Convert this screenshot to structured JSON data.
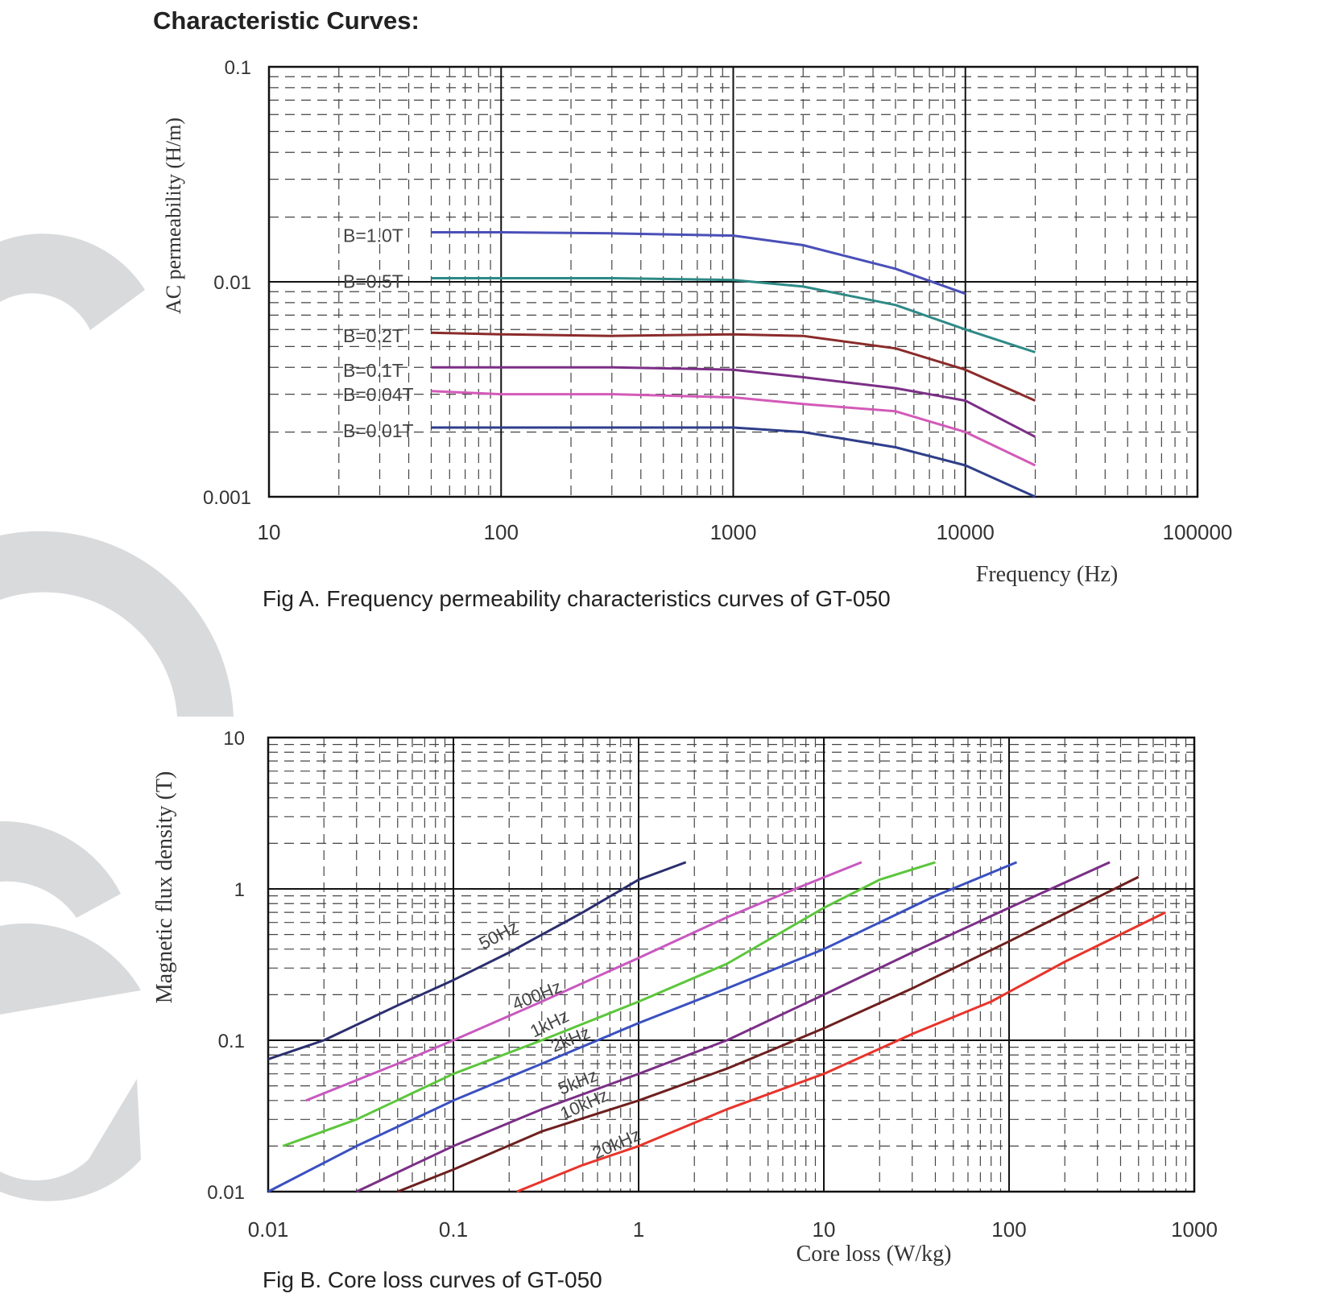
{
  "page": {
    "heading": "Characteristic Curves:",
    "decor_color": "#d9dadc"
  },
  "chart_data": [
    {
      "type": "line",
      "caption": "Fig A. Frequency permeability characteristics curves of GT-050",
      "xlabel": "Frequency (Hz)",
      "ylabel": "AC permeability (H/m)",
      "xscale": "log",
      "yscale": "log",
      "xlim": [
        10,
        100000
      ],
      "ylim": [
        0.001,
        0.1
      ],
      "xticks": [
        "10",
        "100",
        "1000",
        "10000",
        "100000"
      ],
      "yticks": [
        "0.001",
        "0.01",
        "0.1"
      ],
      "grid": true,
      "series": [
        {
          "name": "B=1.0T",
          "color": "#4a4fb8",
          "x": [
            50,
            100,
            300,
            1000,
            2000,
            5000,
            10000
          ],
          "y": [
            0.017,
            0.017,
            0.0168,
            0.0164,
            0.0148,
            0.0115,
            0.0088
          ]
        },
        {
          "name": "B=0.5T",
          "color": "#2e8a86",
          "x": [
            50,
            100,
            300,
            1000,
            2000,
            5000,
            10000,
            20000
          ],
          "y": [
            0.0104,
            0.0104,
            0.0104,
            0.0102,
            0.0095,
            0.0078,
            0.006,
            0.0047
          ]
        },
        {
          "name": "B=0.2T",
          "color": "#8b2b2b",
          "x": [
            50,
            100,
            300,
            1000,
            2000,
            5000,
            10000,
            20000
          ],
          "y": [
            0.0058,
            0.0057,
            0.0056,
            0.0057,
            0.0056,
            0.0049,
            0.0039,
            0.0028
          ]
        },
        {
          "name": "B=0.1T",
          "color": "#7b2f86",
          "x": [
            50,
            100,
            300,
            1000,
            2000,
            5000,
            10000,
            20000
          ],
          "y": [
            0.004,
            0.004,
            0.004,
            0.0039,
            0.0036,
            0.0032,
            0.0028,
            0.0019
          ]
        },
        {
          "name": "B=0.04T",
          "color": "#d35ab8",
          "x": [
            50,
            100,
            300,
            1000,
            2000,
            5000,
            10000,
            20000
          ],
          "y": [
            0.0031,
            0.003,
            0.003,
            0.0029,
            0.0027,
            0.0025,
            0.002,
            0.0014
          ]
        },
        {
          "name": "B=0.01T",
          "color": "#2f3e8a",
          "x": [
            50,
            100,
            300,
            1000,
            2000,
            5000,
            10000,
            20000
          ],
          "y": [
            0.0021,
            0.0021,
            0.0021,
            0.0021,
            0.002,
            0.0017,
            0.0014,
            0.001
          ]
        }
      ]
    },
    {
      "type": "line",
      "caption": "Fig B. Core loss curves of GT-050",
      "xlabel": "Core loss (W/kg)",
      "ylabel": "Magnetic flux density (T)",
      "xscale": "log",
      "yscale": "log",
      "xlim": [
        0.01,
        1000
      ],
      "ylim": [
        0.01,
        10
      ],
      "xticks": [
        "0.01",
        "0.1",
        "1",
        "10",
        "100",
        "1000"
      ],
      "yticks": [
        "0.01",
        "0.1",
        "1",
        "10"
      ],
      "grid": true,
      "series": [
        {
          "name": "50Hz",
          "color": "#2b2f6e",
          "x": [
            0.01,
            0.02,
            0.05,
            0.1,
            0.2,
            0.5,
            1,
            1.8
          ],
          "y": [
            0.075,
            0.1,
            0.17,
            0.25,
            0.38,
            0.7,
            1.15,
            1.5
          ]
        },
        {
          "name": "400Hz",
          "color": "#c859bf",
          "x": [
            0.016,
            0.05,
            0.1,
            0.3,
            1,
            3,
            7,
            16
          ],
          "y": [
            0.04,
            0.07,
            0.1,
            0.18,
            0.35,
            0.65,
            1,
            1.5
          ]
        },
        {
          "name": "1kHz",
          "color": "#5cc63c",
          "x": [
            0.012,
            0.03,
            0.1,
            0.3,
            1,
            3,
            10,
            20,
            40
          ],
          "y": [
            0.02,
            0.03,
            0.06,
            0.1,
            0.18,
            0.32,
            0.75,
            1.15,
            1.5
          ]
        },
        {
          "name": "2kHz",
          "color": "#3a50c0",
          "x": [
            0.01,
            0.03,
            0.1,
            0.3,
            1,
            3,
            10,
            40,
            110
          ],
          "y": [
            0.01,
            0.02,
            0.04,
            0.07,
            0.13,
            0.22,
            0.4,
            0.9,
            1.5
          ]
        },
        {
          "name": "5kHz",
          "color": "#7b2f86",
          "x": [
            0.03,
            0.1,
            0.3,
            1,
            3,
            10,
            30,
            100,
            350
          ],
          "y": [
            0.01,
            0.02,
            0.035,
            0.06,
            0.1,
            0.2,
            0.38,
            0.75,
            1.5
          ]
        },
        {
          "name": "10kHz",
          "color": "#6e1f1f",
          "x": [
            0.05,
            0.1,
            0.3,
            1,
            3,
            10,
            30,
            100,
            500
          ],
          "y": [
            0.01,
            0.014,
            0.025,
            0.04,
            0.065,
            0.12,
            0.22,
            0.45,
            1.2
          ]
        },
        {
          "name": "20kHz",
          "color": "#e8342a",
          "x": [
            0.22,
            0.5,
            1,
            3,
            10,
            30,
            80,
            200,
            700
          ],
          "y": [
            0.01,
            0.015,
            0.02,
            0.035,
            0.06,
            0.11,
            0.18,
            0.33,
            0.7
          ]
        }
      ]
    }
  ]
}
